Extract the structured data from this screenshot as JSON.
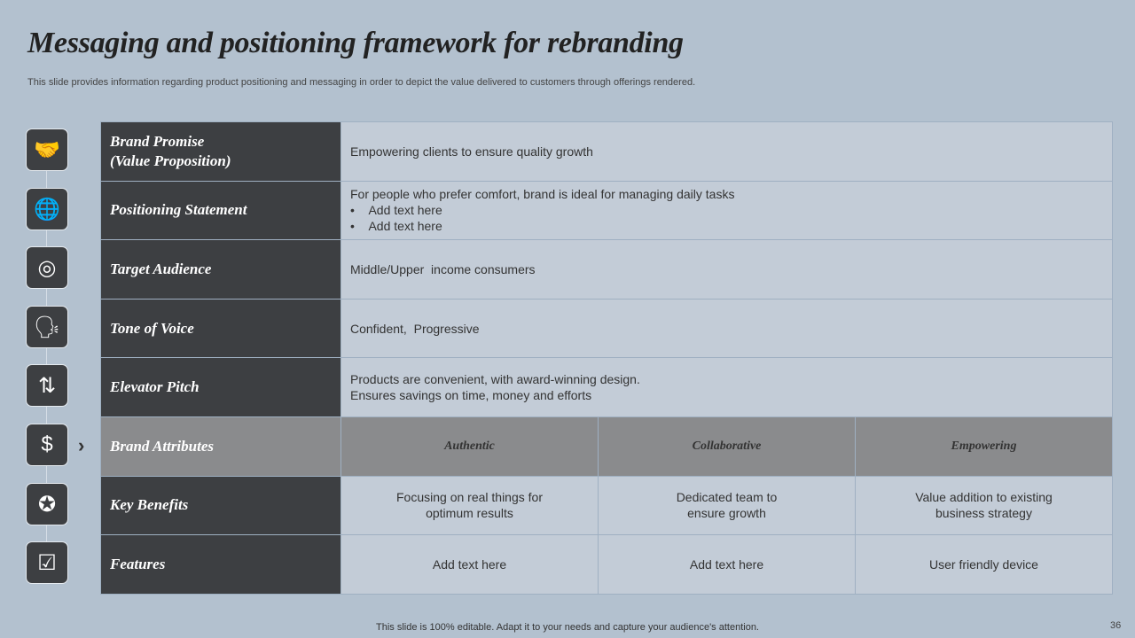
{
  "title": "Messaging and positioning framework for rebranding",
  "subtitle": "This slide provides information regarding product positioning and messaging in order to depict the value delivered to customers through offerings rendered.",
  "icons": [
    "handshake-icon",
    "globe-location-icon",
    "target-audience-icon",
    "speaking-head-icon",
    "elevator-icon",
    "price-tag-dollar-icon",
    "hands-star-icon",
    "checklist-icon"
  ],
  "rows": [
    {
      "label": "Brand Promise",
      "label2": "(Value Proposition)",
      "text": "Empowering clients to ensure quality growth"
    },
    {
      "label": "Positioning Statement",
      "text": "For people who prefer comfort, brand is ideal for managing daily tasks",
      "bullets": [
        "Add text here",
        "Add text here"
      ]
    },
    {
      "label": "Target Audience",
      "text": "Middle/Upper  income consumers"
    },
    {
      "label": "Tone of Voice",
      "text": "Confident,  Progressive"
    },
    {
      "label": "Elevator Pitch",
      "text": "Products are convenient, with award-winning design.",
      "text2": "Ensures savings on time, money and efforts"
    }
  ],
  "attributes": {
    "label": "Brand Attributes",
    "values": [
      "Authentic",
      "Collaborative",
      "Empowering"
    ]
  },
  "benefits": {
    "label": "Key Benefits",
    "values": [
      [
        "Focusing on real things for",
        "optimum results"
      ],
      [
        "Dedicated team to",
        "ensure growth"
      ],
      [
        "Value addition to existing",
        "business strategy"
      ]
    ]
  },
  "features": {
    "label": "Features",
    "values": [
      "Add text here",
      "Add text here",
      "User friendly device"
    ]
  },
  "footer": "This slide is 100% editable. Adapt it to your needs and capture your audience's attention.",
  "page_number": "36"
}
